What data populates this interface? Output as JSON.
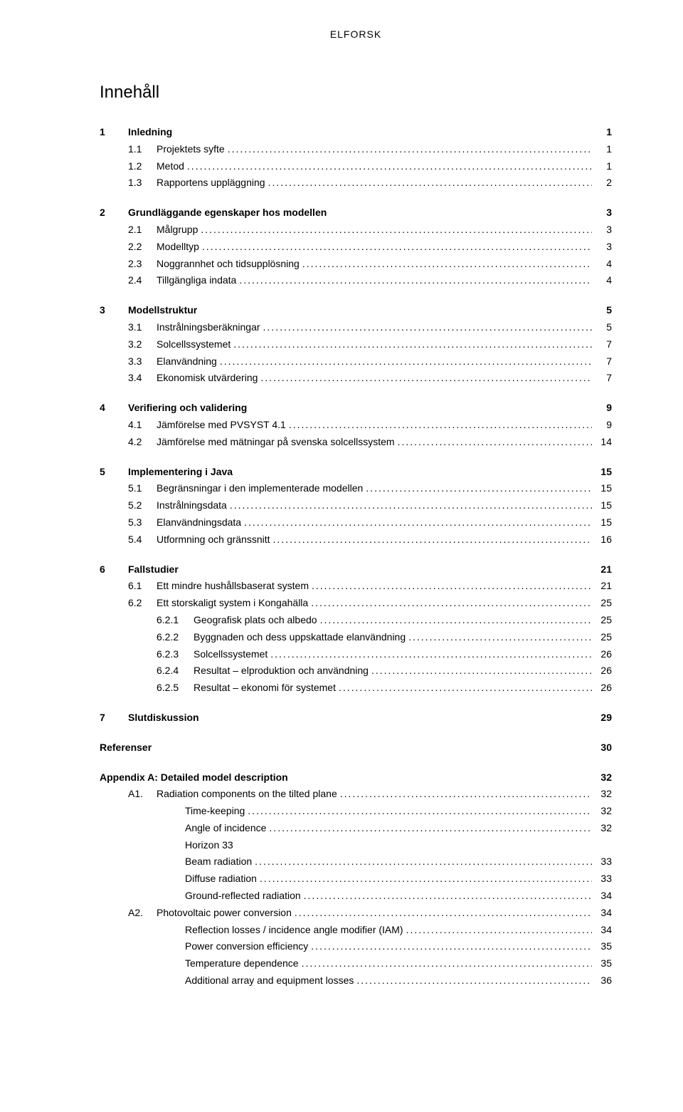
{
  "header": "ELFORSK",
  "title": "Innehåll",
  "sections": [
    {
      "num": "1",
      "title": "Inledning",
      "page": "1",
      "items": [
        {
          "num": "1.1",
          "title": "Projektets syfte",
          "page": "1"
        },
        {
          "num": "1.2",
          "title": "Metod",
          "page": "1"
        },
        {
          "num": "1.3",
          "title": "Rapportens uppläggning",
          "page": "2"
        }
      ]
    },
    {
      "num": "2",
      "title": "Grundläggande egenskaper hos modellen",
      "page": "3",
      "items": [
        {
          "num": "2.1",
          "title": "Målgrupp",
          "page": "3"
        },
        {
          "num": "2.2",
          "title": "Modelltyp",
          "page": "3"
        },
        {
          "num": "2.3",
          "title": "Noggrannhet och tidsupplösning",
          "page": "4"
        },
        {
          "num": "2.4",
          "title": "Tillgängliga indata",
          "page": "4"
        }
      ]
    },
    {
      "num": "3",
      "title": "Modellstruktur",
      "page": "5",
      "items": [
        {
          "num": "3.1",
          "title": "Instrålningsberäkningar",
          "page": "5"
        },
        {
          "num": "3.2",
          "title": "Solcellssystemet",
          "page": "7"
        },
        {
          "num": "3.3",
          "title": "Elanvändning",
          "page": "7"
        },
        {
          "num": "3.4",
          "title": "Ekonomisk utvärdering",
          "page": "7"
        }
      ]
    },
    {
      "num": "4",
      "title": "Verifiering och validering",
      "page": "9",
      "items": [
        {
          "num": "4.1",
          "title": "Jämförelse med PVSYST 4.1",
          "page": "9"
        },
        {
          "num": "4.2",
          "title": "Jämförelse med mätningar på svenska solcellssystem",
          "page": "14"
        }
      ]
    },
    {
      "num": "5",
      "title": "Implementering i Java",
      "page": "15",
      "items": [
        {
          "num": "5.1",
          "title": "Begränsningar i den implementerade modellen",
          "page": "15"
        },
        {
          "num": "5.2",
          "title": "Instrålningsdata",
          "page": "15"
        },
        {
          "num": "5.3",
          "title": "Elanvändningsdata",
          "page": "15"
        },
        {
          "num": "5.4",
          "title": "Utformning och gränssnitt",
          "page": "16"
        }
      ]
    },
    {
      "num": "6",
      "title": "Fallstudier",
      "page": "21",
      "items": [
        {
          "num": "6.1",
          "title": "Ett mindre hushållsbaserat system",
          "page": "21"
        },
        {
          "num": "6.2",
          "title": "Ett storskaligt system i Kongahälla",
          "page": "25",
          "subitems": [
            {
              "num": "6.2.1",
              "title": "Geografisk plats och albedo",
              "page": "25"
            },
            {
              "num": "6.2.2",
              "title": "Byggnaden och dess uppskattade elanvändning",
              "page": "25"
            },
            {
              "num": "6.2.3",
              "title": "Solcellssystemet",
              "page": "26"
            },
            {
              "num": "6.2.4",
              "title": "Resultat – elproduktion och användning",
              "page": "26"
            },
            {
              "num": "6.2.5",
              "title": "Resultat – ekonomi för systemet",
              "page": "26"
            }
          ]
        }
      ]
    },
    {
      "num": "7",
      "title": "Slutdiskussion",
      "page": "29",
      "items": []
    }
  ],
  "refs": {
    "title": "Referenser",
    "page": "30"
  },
  "appendix": {
    "title": "Appendix A: Detailed model description",
    "page": "32",
    "items": [
      {
        "num": "A1.",
        "title": "Radiation components on the tilted plane",
        "page": "32",
        "subitems": [
          {
            "title": "Time-keeping",
            "page": "32"
          },
          {
            "title": "Angle of incidence",
            "page": "32"
          },
          {
            "title": "Horizon 33",
            "page": "",
            "noLeader": true
          },
          {
            "title": "Beam radiation",
            "page": "33"
          },
          {
            "title": "Diffuse radiation",
            "page": "33"
          },
          {
            "title": "Ground-reflected radiation",
            "page": "34"
          }
        ]
      },
      {
        "num": "A2.",
        "title": "Photovoltaic power conversion",
        "page": "34",
        "subitems": [
          {
            "title": "Reflection losses / incidence angle modifier (IAM)",
            "page": "34"
          },
          {
            "title": "Power conversion efficiency",
            "page": "35"
          },
          {
            "title": "Temperature dependence",
            "page": "35"
          },
          {
            "title": "Additional array and equipment losses",
            "page": "36"
          }
        ]
      }
    ]
  }
}
